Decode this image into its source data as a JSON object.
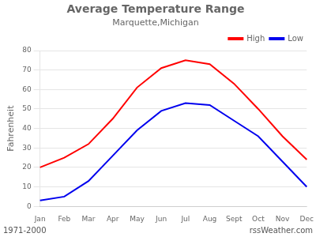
{
  "chart_data": {
    "type": "line",
    "title": "Average Temperature Range",
    "subtitle": "Marquette,Michigan",
    "ylabel": "Fahrenheit",
    "annotations": [
      "1971-2000",
      "rssWeather.com"
    ],
    "categories": [
      "Jan",
      "Feb",
      "Mar",
      "Apr",
      "May",
      "Jun",
      "Jul",
      "Aug",
      "Sept",
      "Oct",
      "Nov",
      "Dec"
    ],
    "series": [
      {
        "name": "High",
        "color": "#ff0000",
        "values": [
          20,
          25,
          32,
          45,
          61,
          71,
          75,
          73,
          63,
          50,
          36,
          24
        ]
      },
      {
        "name": "Low",
        "color": "#0000ee",
        "values": [
          3,
          5,
          13,
          26,
          39,
          49,
          53,
          52,
          44,
          36,
          23,
          10
        ]
      }
    ],
    "ylim": [
      0,
      80
    ],
    "yticks": [
      0,
      10,
      20,
      30,
      40,
      50,
      60,
      70,
      80
    ],
    "grid": true,
    "legend": "upper right"
  }
}
